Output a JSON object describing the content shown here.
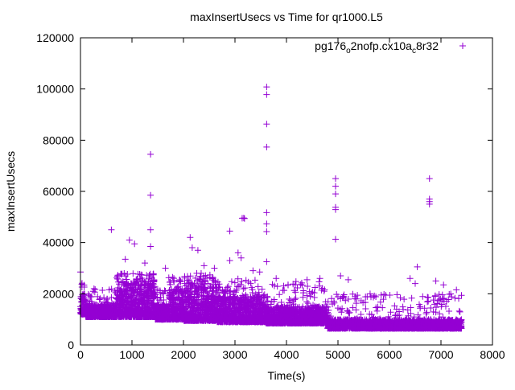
{
  "chart_data": {
    "type": "scatter",
    "title": "maxInsertUsecs vs Time for qr1000.L5",
    "xlabel": "Time(s)",
    "ylabel": "maxInsertUsecs",
    "xlim": [
      0,
      8000
    ],
    "ylim": [
      0,
      120000
    ],
    "xticks": [
      "0",
      "1000",
      "2000",
      "3000",
      "4000",
      "5000",
      "6000",
      "7000",
      "8000"
    ],
    "yticks": [
      "0",
      "20000",
      "40000",
      "60000",
      "80000",
      "100000",
      "120000"
    ],
    "grid": false,
    "legend_position": "top-right",
    "marker": "plus",
    "series": [
      {
        "name": "pg176_o2nofp.cx10a_c8r32",
        "name_parts": [
          "pg176",
          "o",
          "2nofp.cx10a",
          "c",
          "8r32"
        ],
        "color": "#9400D3",
        "outliers": [
          [
            1361,
            74500
          ],
          [
            1361,
            58500
          ],
          [
            1361,
            45000
          ],
          [
            1361,
            38500
          ],
          [
            3615,
            100800
          ],
          [
            3615,
            97800
          ],
          [
            3615,
            86300
          ],
          [
            3615,
            77300
          ],
          [
            3615,
            51700
          ],
          [
            3615,
            47300
          ],
          [
            3615,
            44300
          ],
          [
            3615,
            32500
          ],
          [
            4953,
            65000
          ],
          [
            4953,
            62000
          ],
          [
            4953,
            59000
          ],
          [
            4953,
            53800
          ],
          [
            4953,
            52900
          ],
          [
            4953,
            41300
          ],
          [
            6777,
            65000
          ],
          [
            6777,
            57000
          ],
          [
            6777,
            56000
          ],
          [
            6777,
            55000
          ],
          [
            3140,
            49500
          ],
          [
            3170,
            49600
          ],
          [
            3185,
            49400
          ],
          [
            600,
            45000
          ],
          [
            950,
            41000
          ],
          [
            1050,
            39500
          ],
          [
            2130,
            42000
          ],
          [
            2170,
            38000
          ],
          [
            2280,
            37000
          ],
          [
            2900,
            44500
          ],
          [
            3060,
            36000
          ],
          [
            3120,
            34000
          ],
          [
            2900,
            33000
          ],
          [
            6540,
            30500
          ],
          [
            0,
            28500
          ],
          [
            1650,
            30000
          ],
          [
            1250,
            32000
          ],
          [
            870,
            33500
          ],
          [
            2400,
            31000
          ],
          [
            2600,
            30000
          ],
          [
            3350,
            29000
          ],
          [
            3480,
            28500
          ],
          [
            3800,
            26000
          ],
          [
            4400,
            25500
          ],
          [
            4650,
            26000
          ],
          [
            5050,
            27000
          ],
          [
            5200,
            25500
          ],
          [
            6400,
            26000
          ],
          [
            6500,
            24000
          ],
          [
            6900,
            25000
          ],
          [
            7050,
            23500
          ],
          [
            7300,
            21500
          ]
        ],
        "band_envelope": [
          {
            "x": [
              0,
              100
            ],
            "low": 12000,
            "dense_high": 20000,
            "sparse_high": 25000
          },
          {
            "x": [
              100,
              700
            ],
            "low": 11000,
            "dense_high": 16000,
            "sparse_high": 22000
          },
          {
            "x": [
              700,
              1450
            ],
            "low": 11000,
            "dense_high": 25000,
            "sparse_high": 28000
          },
          {
            "x": [
              1450,
              1700
            ],
            "low": 10000,
            "dense_high": 16000,
            "sparse_high": 22000
          },
          {
            "x": [
              1700,
              2000
            ],
            "low": 10000,
            "dense_high": 22000,
            "sparse_high": 27000
          },
          {
            "x": [
              2000,
              2650
            ],
            "low": 9500,
            "dense_high": 24000,
            "sparse_high": 28000
          },
          {
            "x": [
              2650,
              3600
            ],
            "low": 9000,
            "dense_high": 19000,
            "sparse_high": 26000
          },
          {
            "x": [
              3600,
              4800
            ],
            "low": 8500,
            "dense_high": 15000,
            "sparse_high": 25000
          },
          {
            "x": [
              4800,
              7400
            ],
            "low": 6500,
            "dense_high": 10000,
            "sparse_high": 20000
          }
        ]
      }
    ]
  }
}
